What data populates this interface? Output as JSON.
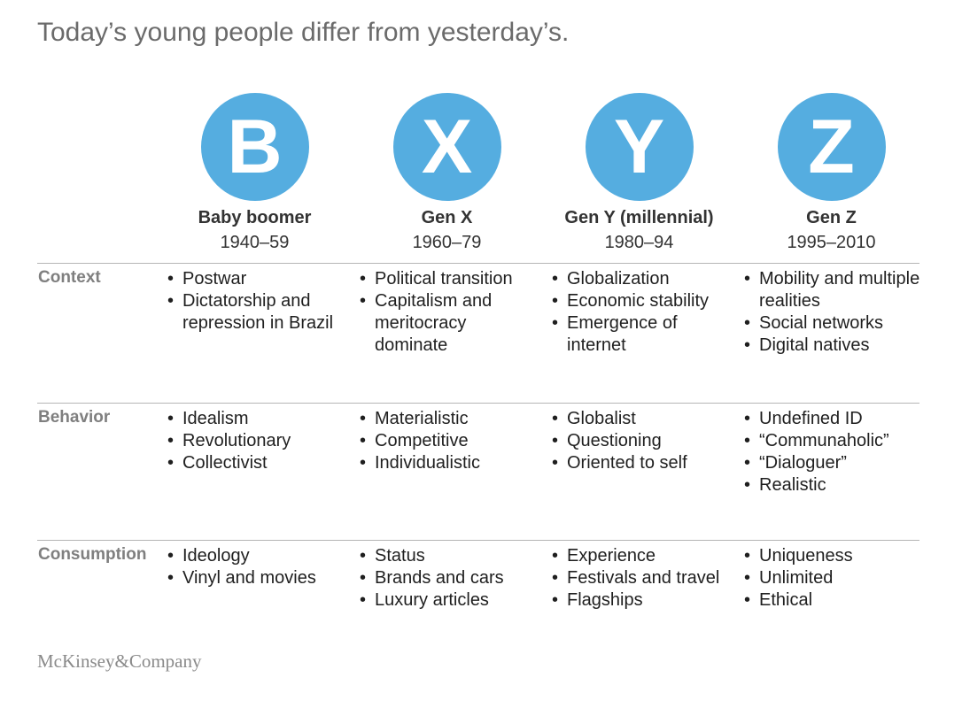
{
  "title": "Today’s young people differ from yesterday’s.",
  "generations": [
    {
      "letter": "B",
      "name": "Baby boomer",
      "years": "1940–59"
    },
    {
      "letter": "X",
      "name": "Gen X",
      "years": "1960–79"
    },
    {
      "letter": "Y",
      "name": "Gen Y (millennial)",
      "years": "1980–94"
    },
    {
      "letter": "Z",
      "name": "Gen Z",
      "years": "1995–2010"
    }
  ],
  "rows": [
    {
      "label": "Context",
      "cells": [
        [
          "Postwar",
          "Dictatorship and repression in Brazil"
        ],
        [
          "Political transition",
          "Capitalism and meritocracy dominate"
        ],
        [
          "Globalization",
          "Economic stability",
          "Emergence of internet"
        ],
        [
          "Mobility and multiple realities",
          "Social networks",
          "Digital natives"
        ]
      ]
    },
    {
      "label": "Behavior",
      "cells": [
        [
          "Idealism",
          "Revolutionary",
          "Collectivist"
        ],
        [
          "Materialistic",
          "Competitive",
          "Individualistic"
        ],
        [
          "Globalist",
          "Questioning",
          "Oriented to self"
        ],
        [
          "Undefined ID",
          "“Communaholic”",
          "“Dialoguer”",
          "Realistic"
        ]
      ]
    },
    {
      "label": "Consumption",
      "cells": [
        [
          "Ideology",
          "Vinyl and movies"
        ],
        [
          "Status",
          "Brands and cars",
          "Luxury articles"
        ],
        [
          "Experience",
          "Festivals and travel",
          "Flagships"
        ],
        [
          "Uniqueness",
          "Unlimited",
          "Ethical"
        ]
      ]
    }
  ],
  "footer": {
    "logo": "McKinsey&Company"
  },
  "colors": {
    "circle": "#55ade0",
    "label": "#7f7f7f",
    "title": "#6b6b6b"
  }
}
